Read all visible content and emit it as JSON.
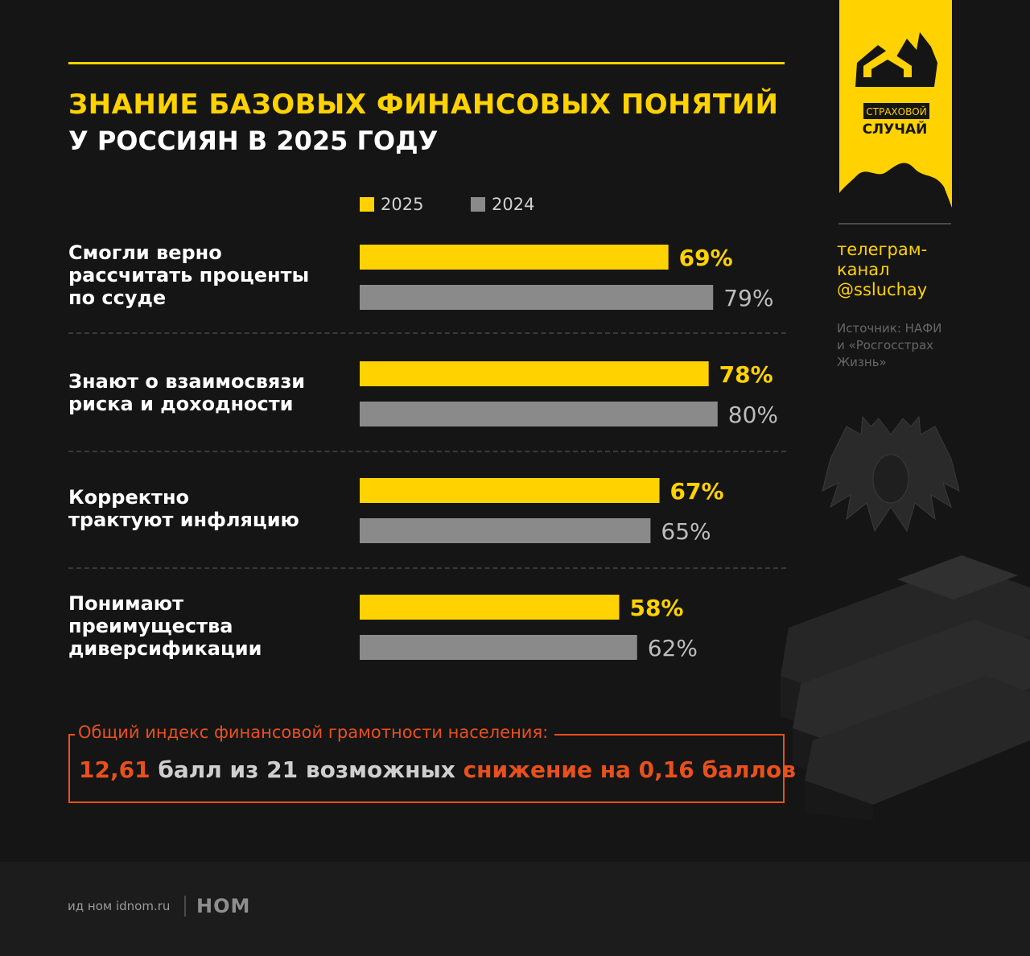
{
  "header": {
    "title_line1": "ЗНАНИЕ БАЗОВЫХ ФИНАНСОВЫХ ПОНЯТИЙ",
    "title_line2": "У РОССИЯН В 2025 ГОДУ"
  },
  "brand": {
    "logo_line1": "СТРАХОВОЙ",
    "logo_line2": "СЛУЧАЙ",
    "telegram_line1": "телеграм-",
    "telegram_line2": "канал",
    "telegram_line3": "@ssluchay",
    "source_line1": "Источник: НАФИ",
    "source_line2": "и «Росгосстрах",
    "source_line3": "Жизнь»"
  },
  "chart_data": {
    "type": "bar",
    "orientation": "horizontal",
    "legend_position": "top",
    "categories": [
      [
        "Смогли верно",
        "рассчитать проценты",
        "по ссуде"
      ],
      [
        "Знают о взаимосвязи",
        "риска и доходности"
      ],
      [
        "Корректно",
        "трактуют инфляцию"
      ],
      [
        "Понимают",
        "преимущества",
        "диверсификации"
      ]
    ],
    "series": [
      {
        "name": "2025",
        "values": [
          69,
          78,
          67,
          58
        ],
        "labels": [
          "69%",
          "78%",
          "67%",
          "58%"
        ],
        "color": "#ffd200",
        "label_color": "#ffd200"
      },
      {
        "name": "2024",
        "values": [
          79,
          80,
          65,
          62
        ],
        "labels": [
          "79%",
          "80%",
          "65%",
          "62%"
        ],
        "color": "#8a8a8a",
        "label_color": "#bdbdbd"
      }
    ]
  },
  "index": {
    "caption": "Общий индекс финансовой грамотности населения:",
    "value": "12,61",
    "mid_text": " балл из 21 возможных ",
    "change_text": "снижение на 0,16 баллов"
  },
  "footer": {
    "text": "ид ном idnom.ru",
    "logo": "НОМ"
  },
  "colors": {
    "accent": "#ffd200",
    "alert": "#e8501c",
    "background": "#151515"
  }
}
